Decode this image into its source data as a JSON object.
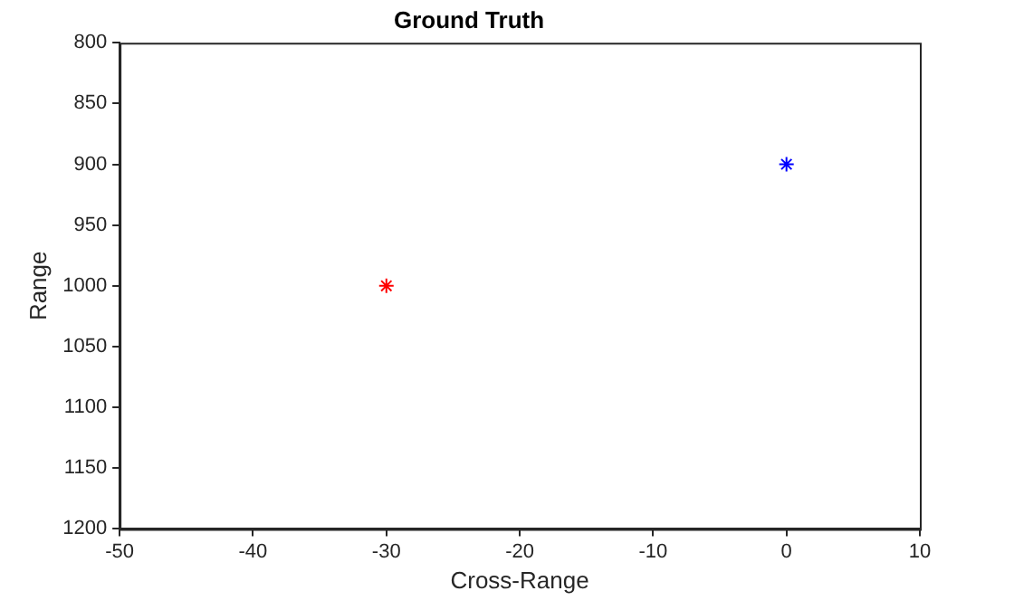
{
  "chart_data": {
    "type": "scatter",
    "title": "Ground Truth",
    "xlabel": "Cross-Range",
    "ylabel": "Range",
    "series": [
      {
        "color": "#ff0000",
        "x": [
          -30
        ],
        "values": [
          1000
        ]
      },
      {
        "color": "#0000ff",
        "x": [
          0
        ],
        "values": [
          900
        ]
      }
    ],
    "xlim": [
      -50,
      10
    ],
    "xticks": [
      -50,
      -40,
      -30,
      -20,
      -10,
      0,
      10
    ],
    "ylim": [
      1200,
      800
    ],
    "yticks": [
      800,
      850,
      900,
      950,
      1000,
      1050,
      1100,
      1150,
      1200
    ],
    "grid": false,
    "legend": false,
    "marker": "cross"
  }
}
